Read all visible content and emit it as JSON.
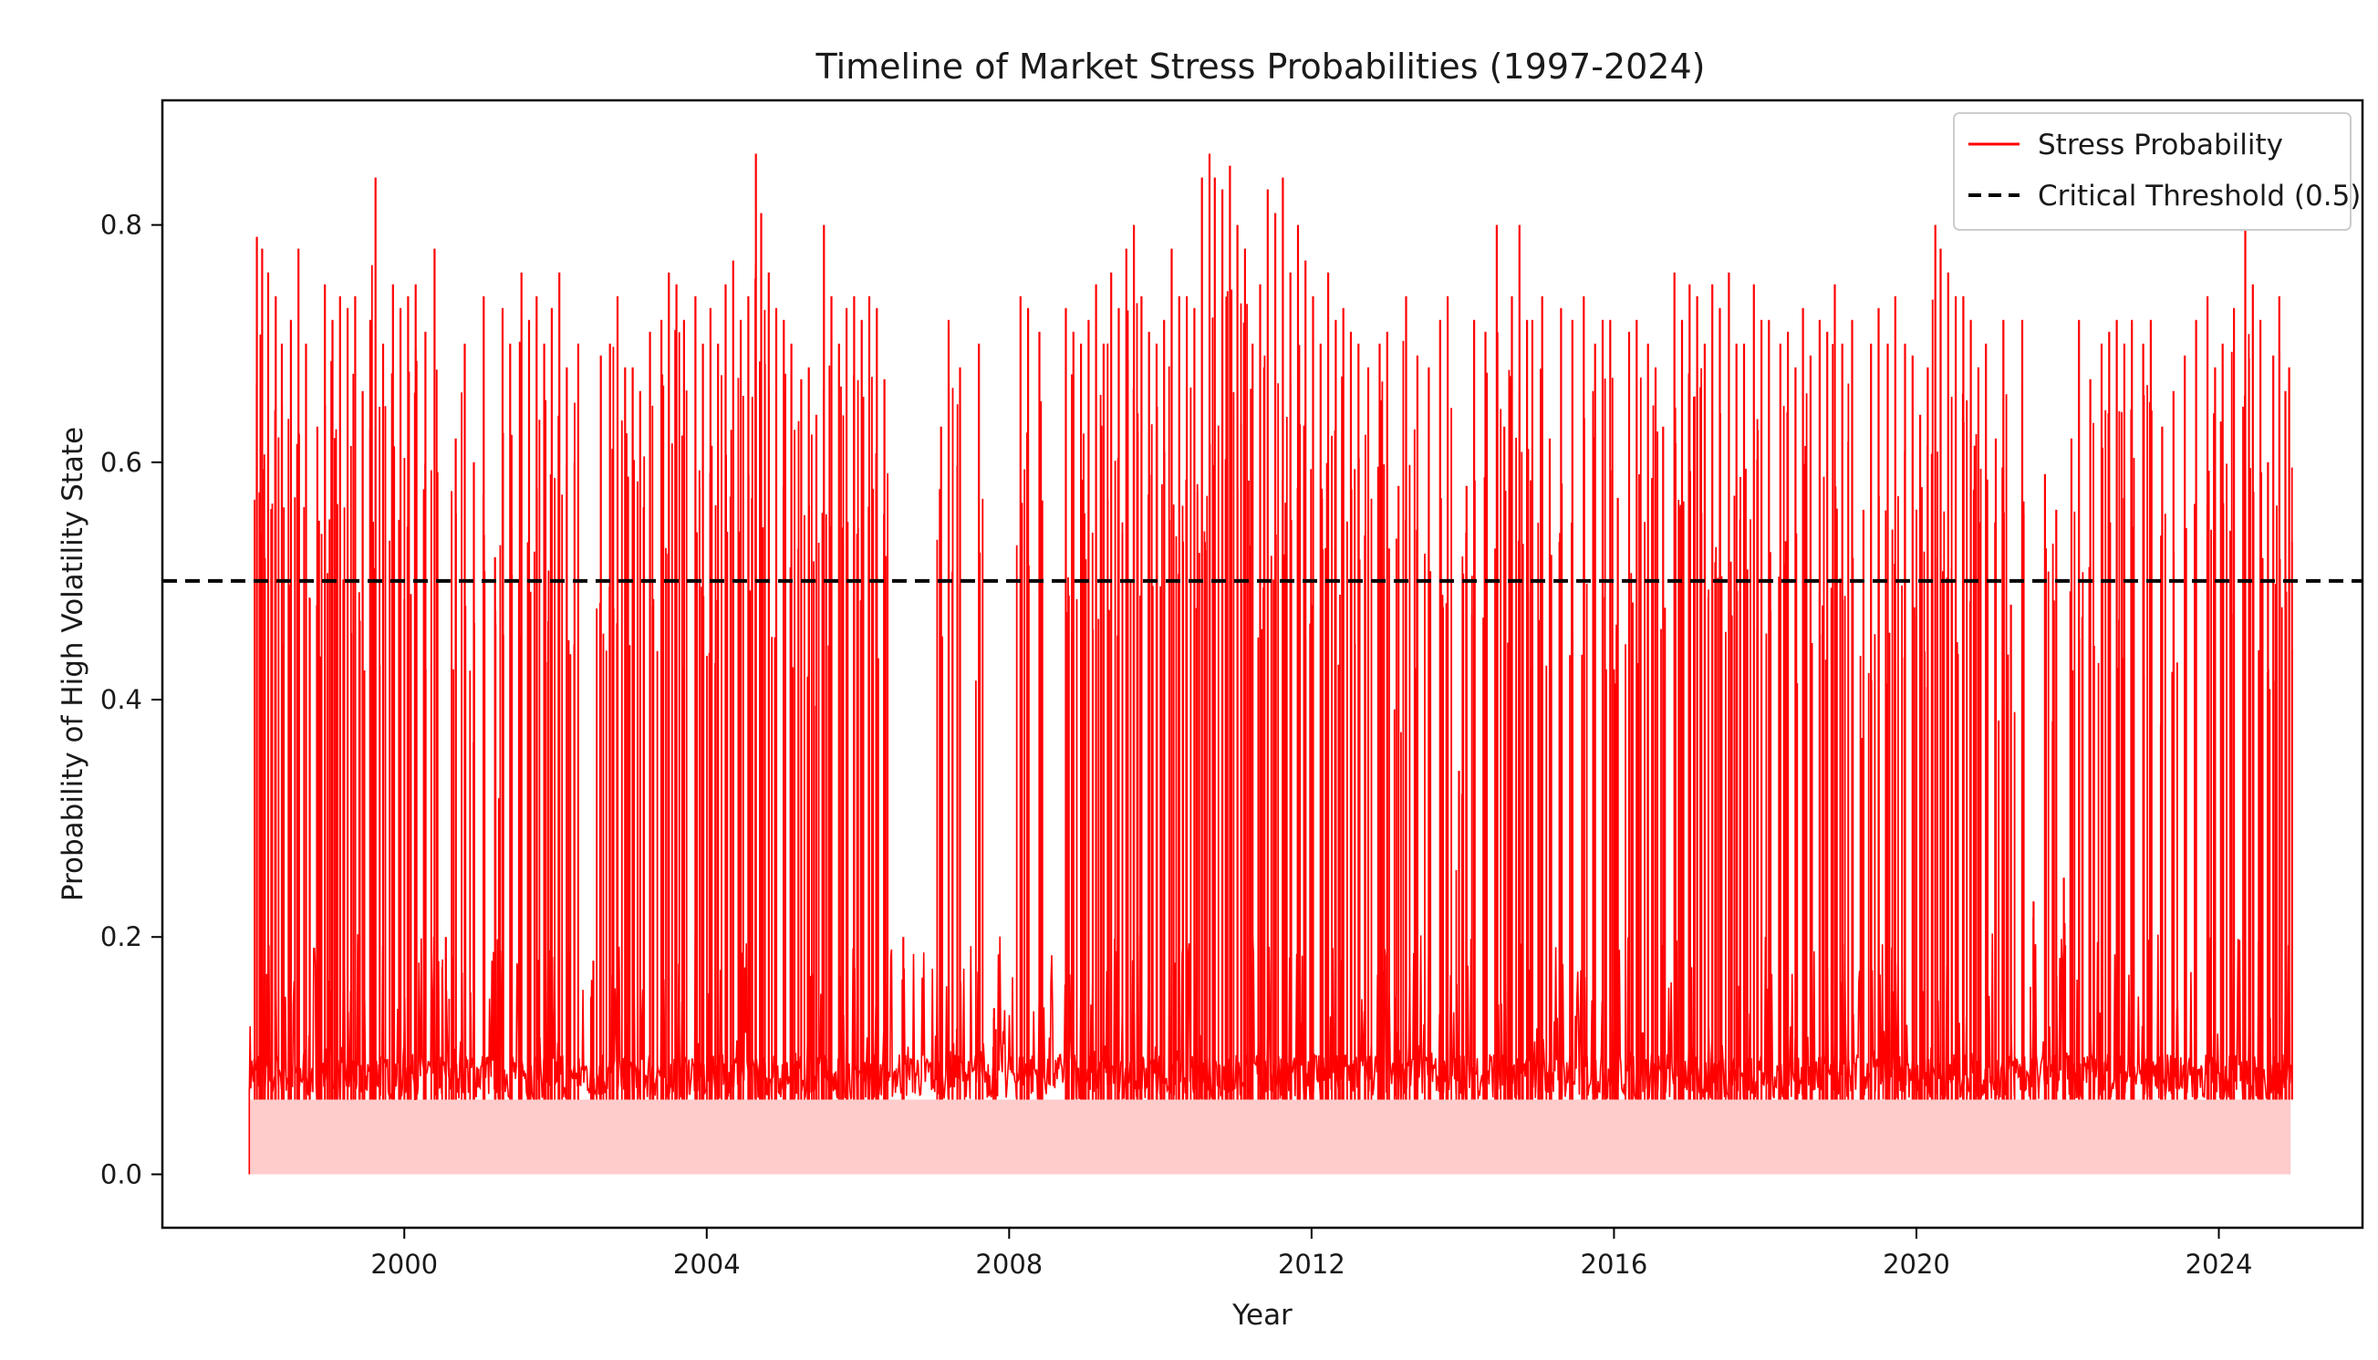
{
  "chart_data": {
    "type": "line",
    "title": "Timeline of Market Stress Probabilities (1997-2024)",
    "xlabel": "Year",
    "ylabel": "Probability of High Volatility State",
    "xlim": [
      1996.8,
      2025.9
    ],
    "ylim": [
      -0.045,
      0.905
    ],
    "xticks": [
      2000,
      2004,
      2008,
      2012,
      2016,
      2020,
      2024
    ],
    "xtick_labels": [
      "2000",
      "2004",
      "2008",
      "2012",
      "2016",
      "2020",
      "2024"
    ],
    "yticks": [
      0.0,
      0.2,
      0.4,
      0.6,
      0.8
    ],
    "ytick_labels": [
      "0.0",
      "0.2",
      "0.4",
      "0.6",
      "0.8"
    ],
    "grid": false,
    "legend": {
      "placement": "top-right",
      "entries": [
        {
          "label": "Stress Probability",
          "style": "solid",
          "color": "#ff0000"
        },
        {
          "label": "Critical Threshold (0.5)",
          "style": "dashed",
          "color": "#000000"
        }
      ]
    },
    "series": [
      {
        "name": "Stress Probability",
        "color": "#ff0000",
        "fill_color": "#ffcccc",
        "baseline": 0.063,
        "x_start": 1997.95,
        "x_end": 2024.95,
        "spikes": [
          [
            1998.05,
            0.79
          ],
          [
            1998.12,
            0.78
          ],
          [
            1998.2,
            0.76
          ],
          [
            1998.3,
            0.74
          ],
          [
            1998.38,
            0.7
          ],
          [
            1998.5,
            0.72
          ],
          [
            1998.6,
            0.78
          ],
          [
            1998.7,
            0.7
          ],
          [
            1998.85,
            0.63
          ],
          [
            1998.95,
            0.75
          ],
          [
            1999.05,
            0.72
          ],
          [
            1999.15,
            0.74
          ],
          [
            1999.25,
            0.73
          ],
          [
            1999.35,
            0.74
          ],
          [
            1999.45,
            0.66
          ],
          [
            1999.55,
            0.72
          ],
          [
            1999.62,
            0.84
          ],
          [
            1999.72,
            0.7
          ],
          [
            1999.85,
            0.75
          ],
          [
            1999.95,
            0.73
          ],
          [
            2000.05,
            0.74
          ],
          [
            2000.15,
            0.75
          ],
          [
            2000.28,
            0.71
          ],
          [
            2000.4,
            0.78
          ],
          [
            2000.55,
            0.2
          ],
          [
            2000.68,
            0.62
          ],
          [
            2000.8,
            0.7
          ],
          [
            2000.92,
            0.6
          ],
          [
            2001.05,
            0.74
          ],
          [
            2001.2,
            0.52
          ],
          [
            2001.3,
            0.73
          ],
          [
            2001.4,
            0.7
          ],
          [
            2001.55,
            0.76
          ],
          [
            2001.65,
            0.72
          ],
          [
            2001.75,
            0.74
          ],
          [
            2001.85,
            0.7
          ],
          [
            2001.95,
            0.73
          ],
          [
            2002.05,
            0.76
          ],
          [
            2002.15,
            0.68
          ],
          [
            2002.3,
            0.7
          ],
          [
            2002.5,
            0.18
          ],
          [
            2002.6,
            0.69
          ],
          [
            2002.72,
            0.7
          ],
          [
            2002.82,
            0.74
          ],
          [
            2002.92,
            0.68
          ],
          [
            2003.02,
            0.68
          ],
          [
            2003.12,
            0.66
          ],
          [
            2003.25,
            0.71
          ],
          [
            2003.4,
            0.72
          ],
          [
            2003.5,
            0.76
          ],
          [
            2003.6,
            0.75
          ],
          [
            2003.7,
            0.72
          ],
          [
            2003.85,
            0.74
          ],
          [
            2003.95,
            0.7
          ],
          [
            2004.05,
            0.73
          ],
          [
            2004.15,
            0.7
          ],
          [
            2004.25,
            0.75
          ],
          [
            2004.35,
            0.77
          ],
          [
            2004.45,
            0.72
          ],
          [
            2004.55,
            0.74
          ],
          [
            2004.65,
            0.86
          ],
          [
            2004.72,
            0.81
          ],
          [
            2004.82,
            0.76
          ],
          [
            2004.92,
            0.73
          ],
          [
            2005.02,
            0.72
          ],
          [
            2005.12,
            0.7
          ],
          [
            2005.25,
            0.67
          ],
          [
            2005.35,
            0.68
          ],
          [
            2005.45,
            0.64
          ],
          [
            2005.55,
            0.8
          ],
          [
            2005.65,
            0.74
          ],
          [
            2005.75,
            0.7
          ],
          [
            2005.85,
            0.73
          ],
          [
            2005.95,
            0.74
          ],
          [
            2006.05,
            0.72
          ],
          [
            2006.15,
            0.74
          ],
          [
            2006.25,
            0.73
          ],
          [
            2006.35,
            0.67
          ],
          [
            2006.6,
            0.2
          ],
          [
            2007.1,
            0.63
          ],
          [
            2007.2,
            0.72
          ],
          [
            2007.35,
            0.68
          ],
          [
            2007.6,
            0.7
          ],
          [
            2007.8,
            0.14
          ],
          [
            2008.15,
            0.74
          ],
          [
            2008.25,
            0.73
          ],
          [
            2008.4,
            0.71
          ],
          [
            2008.75,
            0.73
          ],
          [
            2008.85,
            0.71
          ],
          [
            2008.95,
            0.7
          ],
          [
            2009.05,
            0.72
          ],
          [
            2009.15,
            0.75
          ],
          [
            2009.25,
            0.7
          ],
          [
            2009.35,
            0.76
          ],
          [
            2009.45,
            0.73
          ],
          [
            2009.55,
            0.78
          ],
          [
            2009.65,
            0.8
          ],
          [
            2009.75,
            0.74
          ],
          [
            2009.85,
            0.71
          ],
          [
            2009.95,
            0.7
          ],
          [
            2010.05,
            0.72
          ],
          [
            2010.15,
            0.78
          ],
          [
            2010.25,
            0.74
          ],
          [
            2010.35,
            0.74
          ],
          [
            2010.45,
            0.73
          ],
          [
            2010.55,
            0.84
          ],
          [
            2010.65,
            0.86
          ],
          [
            2010.72,
            0.84
          ],
          [
            2010.82,
            0.83
          ],
          [
            2010.92,
            0.85
          ],
          [
            2011.02,
            0.8
          ],
          [
            2011.12,
            0.78
          ],
          [
            2011.22,
            0.7
          ],
          [
            2011.32,
            0.75
          ],
          [
            2011.42,
            0.83
          ],
          [
            2011.52,
            0.81
          ],
          [
            2011.62,
            0.84
          ],
          [
            2011.72,
            0.76
          ],
          [
            2011.82,
            0.8
          ],
          [
            2011.92,
            0.77
          ],
          [
            2012.02,
            0.74
          ],
          [
            2012.12,
            0.7
          ],
          [
            2012.22,
            0.76
          ],
          [
            2012.32,
            0.72
          ],
          [
            2012.42,
            0.73
          ],
          [
            2012.52,
            0.71
          ],
          [
            2012.62,
            0.7
          ],
          [
            2012.75,
            0.68
          ],
          [
            2012.9,
            0.7
          ],
          [
            2013.0,
            0.71
          ],
          [
            2013.15,
            0.58
          ],
          [
            2013.25,
            0.74
          ],
          [
            2013.4,
            0.69
          ],
          [
            2013.55,
            0.68
          ],
          [
            2013.7,
            0.72
          ],
          [
            2013.8,
            0.74
          ],
          [
            2013.95,
            0.34
          ],
          [
            2014.05,
            0.58
          ],
          [
            2014.15,
            0.72
          ],
          [
            2014.3,
            0.71
          ],
          [
            2014.45,
            0.8
          ],
          [
            2014.55,
            0.63
          ],
          [
            2014.65,
            0.74
          ],
          [
            2014.75,
            0.8
          ],
          [
            2014.85,
            0.72
          ],
          [
            2014.92,
            0.72
          ],
          [
            2015.05,
            0.74
          ],
          [
            2015.15,
            0.62
          ],
          [
            2015.3,
            0.73
          ],
          [
            2015.45,
            0.72
          ],
          [
            2015.6,
            0.74
          ],
          [
            2015.75,
            0.7
          ],
          [
            2015.85,
            0.72
          ],
          [
            2015.95,
            0.72
          ],
          [
            2016.05,
            0.57
          ],
          [
            2016.2,
            0.71
          ],
          [
            2016.3,
            0.72
          ],
          [
            2016.45,
            0.7
          ],
          [
            2016.55,
            0.68
          ],
          [
            2016.65,
            0.63
          ],
          [
            2016.8,
            0.76
          ],
          [
            2016.9,
            0.72
          ],
          [
            2017.0,
            0.75
          ],
          [
            2017.1,
            0.74
          ],
          [
            2017.2,
            0.7
          ],
          [
            2017.3,
            0.75
          ],
          [
            2017.4,
            0.73
          ],
          [
            2017.52,
            0.76
          ],
          [
            2017.62,
            0.7
          ],
          [
            2017.72,
            0.7
          ],
          [
            2017.85,
            0.75
          ],
          [
            2017.95,
            0.72
          ],
          [
            2018.05,
            0.72
          ],
          [
            2018.2,
            0.7
          ],
          [
            2018.3,
            0.71
          ],
          [
            2018.4,
            0.68
          ],
          [
            2018.5,
            0.73
          ],
          [
            2018.6,
            0.69
          ],
          [
            2018.72,
            0.72
          ],
          [
            2018.82,
            0.71
          ],
          [
            2018.92,
            0.75
          ],
          [
            2019.02,
            0.7
          ],
          [
            2019.15,
            0.72
          ],
          [
            2019.3,
            0.56
          ],
          [
            2019.4,
            0.7
          ],
          [
            2019.5,
            0.73
          ],
          [
            2019.62,
            0.7
          ],
          [
            2019.72,
            0.74
          ],
          [
            2019.85,
            0.7
          ],
          [
            2019.95,
            0.69
          ],
          [
            2020.05,
            0.64
          ],
          [
            2020.15,
            0.68
          ],
          [
            2020.25,
            0.8
          ],
          [
            2020.32,
            0.78
          ],
          [
            2020.42,
            0.76
          ],
          [
            2020.52,
            0.74
          ],
          [
            2020.62,
            0.74
          ],
          [
            2020.72,
            0.72
          ],
          [
            2020.82,
            0.68
          ],
          [
            2020.92,
            0.7
          ],
          [
            2021.05,
            0.62
          ],
          [
            2021.15,
            0.72
          ],
          [
            2021.25,
            0.48
          ],
          [
            2021.4,
            0.72
          ],
          [
            2021.55,
            0.23
          ],
          [
            2021.7,
            0.59
          ],
          [
            2021.85,
            0.56
          ],
          [
            2021.95,
            0.25
          ],
          [
            2022.05,
            0.62
          ],
          [
            2022.15,
            0.72
          ],
          [
            2022.3,
            0.67
          ],
          [
            2022.45,
            0.7
          ],
          [
            2022.55,
            0.71
          ],
          [
            2022.65,
            0.72
          ],
          [
            2022.75,
            0.7
          ],
          [
            2022.85,
            0.72
          ],
          [
            2023.0,
            0.7
          ],
          [
            2023.1,
            0.72
          ],
          [
            2023.25,
            0.63
          ],
          [
            2023.4,
            0.66
          ],
          [
            2023.55,
            0.69
          ],
          [
            2023.7,
            0.72
          ],
          [
            2023.85,
            0.74
          ],
          [
            2023.95,
            0.68
          ],
          [
            2024.05,
            0.7
          ],
          [
            2024.2,
            0.73
          ],
          [
            2024.35,
            0.8
          ],
          [
            2024.45,
            0.75
          ],
          [
            2024.55,
            0.72
          ],
          [
            2024.65,
            0.6
          ],
          [
            2024.72,
            0.69
          ],
          [
            2024.8,
            0.74
          ],
          [
            2024.88,
            0.66
          ],
          [
            2024.93,
            0.68
          ]
        ]
      },
      {
        "name": "Critical Threshold (0.5)",
        "color": "#000000",
        "style": "dashed",
        "y": 0.5
      }
    ]
  }
}
